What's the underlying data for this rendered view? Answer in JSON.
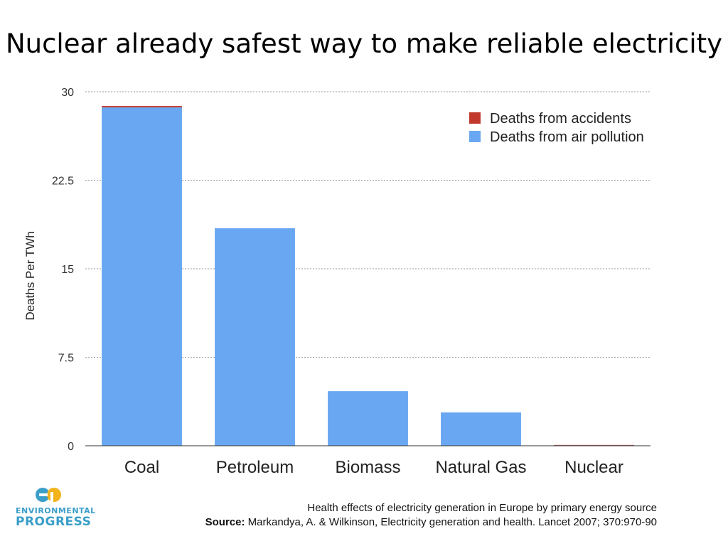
{
  "page": {
    "title": "Nuclear already safest way to make reliable electricity"
  },
  "caption": {
    "line1": "Health effects of electricity generation in Europe by primary energy source",
    "source_label": "Source:",
    "source_text": " Markandya, A. & Wilkinson, Electricity generation and health. Lancet 2007; 370:970-90"
  },
  "logo": {
    "word1": "ENVIRONMENTAL",
    "word2": "PROGRESS",
    "colors": {
      "blue": "#3a9ec9",
      "yellow": "#f2b31c"
    }
  },
  "chart_data": {
    "type": "bar",
    "stacked": true,
    "title": "Nuclear already safest way to make reliable electricity",
    "xlabel": "",
    "ylabel": "Deaths Per TWh",
    "categories": [
      "Coal",
      "Petroleum",
      "Biomass",
      "Natural Gas",
      "Nuclear"
    ],
    "series": [
      {
        "name": "Deaths from air pollution",
        "color": "#6aa7f2",
        "values": [
          28.67,
          18.43,
          4.63,
          2.82,
          0.05
        ]
      },
      {
        "name": "Deaths from accidents",
        "color": "#c0392b",
        "values": [
          0.12,
          0.0,
          0.0,
          0.0,
          0.02
        ]
      }
    ],
    "ylim": [
      0,
      30
    ],
    "yticks": [
      0,
      7.5,
      15,
      22.5,
      30
    ],
    "ytick_labels": [
      "0",
      "7.5",
      "15",
      "22.5",
      "30"
    ],
    "grid": true,
    "legend": {
      "placement": "top-right",
      "entries": [
        "Deaths from accidents",
        "Deaths from air pollution"
      ]
    }
  }
}
